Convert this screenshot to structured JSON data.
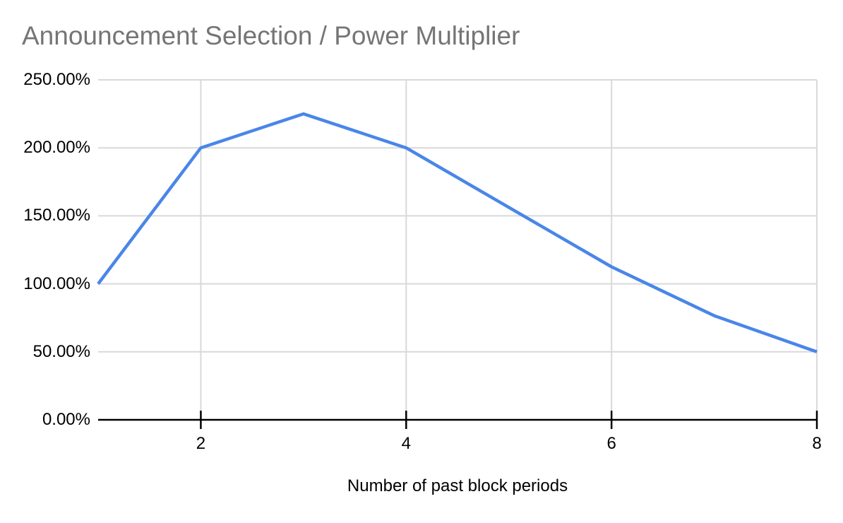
{
  "chart_data": {
    "type": "line",
    "title": "Announcement Selection / Power Multiplier",
    "xlabel": "Number of past block periods",
    "ylabel": "",
    "x": [
      1,
      2,
      3,
      4,
      5,
      6,
      7,
      8
    ],
    "values": [
      100,
      200,
      225,
      200,
      156.25,
      112.5,
      76.5625,
      50
    ],
    "value_unit": "percent",
    "xlim": [
      1,
      8
    ],
    "ylim": [
      0,
      250
    ],
    "x_ticks": [
      2,
      4,
      6,
      8
    ],
    "x_tick_labels": [
      "2",
      "4",
      "6",
      "8"
    ],
    "y_ticks": [
      0,
      50,
      100,
      150,
      200,
      250
    ],
    "y_tick_labels": [
      "0.00%",
      "50.00%",
      "100.00%",
      "150.00%",
      "200.00%",
      "250.00%"
    ],
    "grid": true,
    "legend": "none",
    "line_color": "#4a86e8",
    "title_color": "#757575",
    "axis_color": "#000000",
    "gridline_color": "#d9d9d9"
  }
}
